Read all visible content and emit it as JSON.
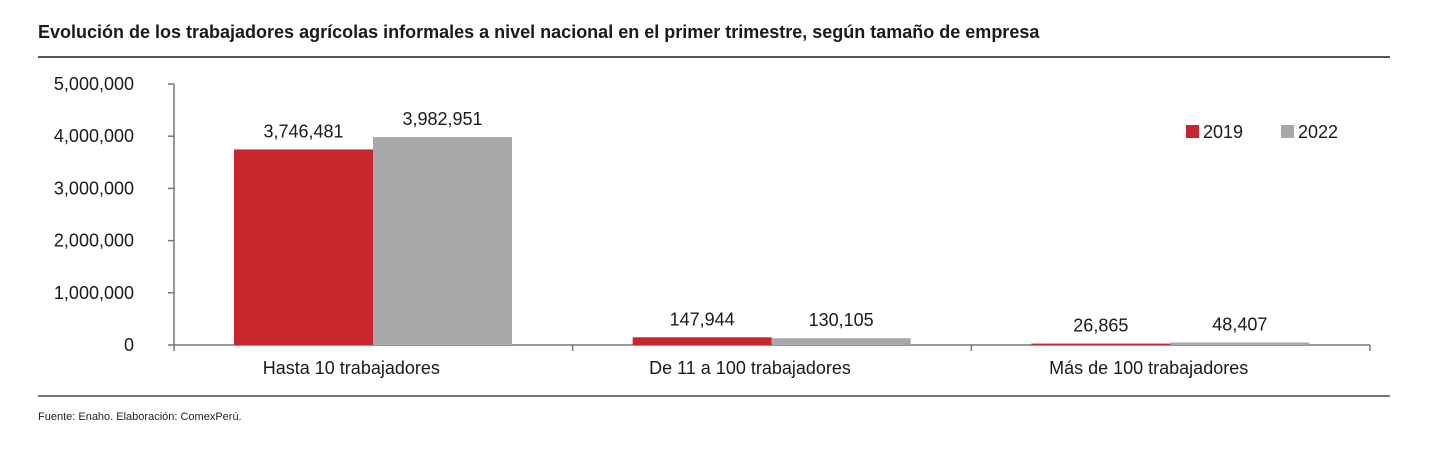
{
  "title": "Evolución de los trabajadores agrícolas informales a nivel nacional en el primer trimestre, según tamaño de empresa",
  "source": "Fuente: Enaho. Elaboración: ComexPerú.",
  "chart_data": {
    "type": "bar",
    "categories": [
      "Hasta 10 trabajadores",
      "De 11 a 100 trabajadores",
      "Más de 100 trabajadores"
    ],
    "series": [
      {
        "name": "2019",
        "color": "#c8262d",
        "values": [
          3746481,
          147944,
          26865
        ],
        "labels": [
          "3,746,481",
          "147,944",
          "26,865"
        ]
      },
      {
        "name": "2022",
        "color": "#a6a8a9",
        "values": [
          3982951,
          130105,
          48407
        ],
        "labels": [
          "3,982,951",
          "130,105",
          "48,407"
        ]
      }
    ],
    "ylim": [
      0,
      5000000
    ],
    "yticks": [
      0,
      1000000,
      2000000,
      3000000,
      4000000,
      5000000
    ],
    "ytick_labels": [
      "0",
      "1,000,000",
      "2,000,000",
      "3,000,000",
      "4,000,000",
      "5,000,000"
    ],
    "legend_position": "top-right",
    "grid": false
  }
}
